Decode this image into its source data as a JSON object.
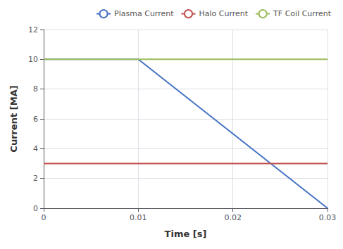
{
  "chart_data": {
    "type": "line",
    "xlabel": "Time [s]",
    "ylabel": "Current [MA]",
    "series": [
      {
        "name": "Plasma Current",
        "color": "#4472C4",
        "x": [
          0.0,
          0.01,
          0.03
        ],
        "values": [
          10.0,
          10.0,
          0.0
        ]
      },
      {
        "name": "Halo Current",
        "color": "#C0504D",
        "x": [
          0.0,
          0.03
        ],
        "values": [
          3.0,
          3.0
        ]
      },
      {
        "name": "TF Coil Current",
        "color": "#9BBB59",
        "x": [
          0.0,
          0.03
        ],
        "values": [
          10.0,
          10.0
        ]
      }
    ],
    "xlim": [
      0.0,
      0.03
    ],
    "ylim": [
      0.0,
      12.0
    ],
    "xticks": [
      0.0,
      0.01,
      0.02,
      0.03
    ],
    "yticks": [
      0,
      2,
      4,
      6,
      8,
      10,
      12
    ],
    "grid": true,
    "legend": "upper right"
  }
}
